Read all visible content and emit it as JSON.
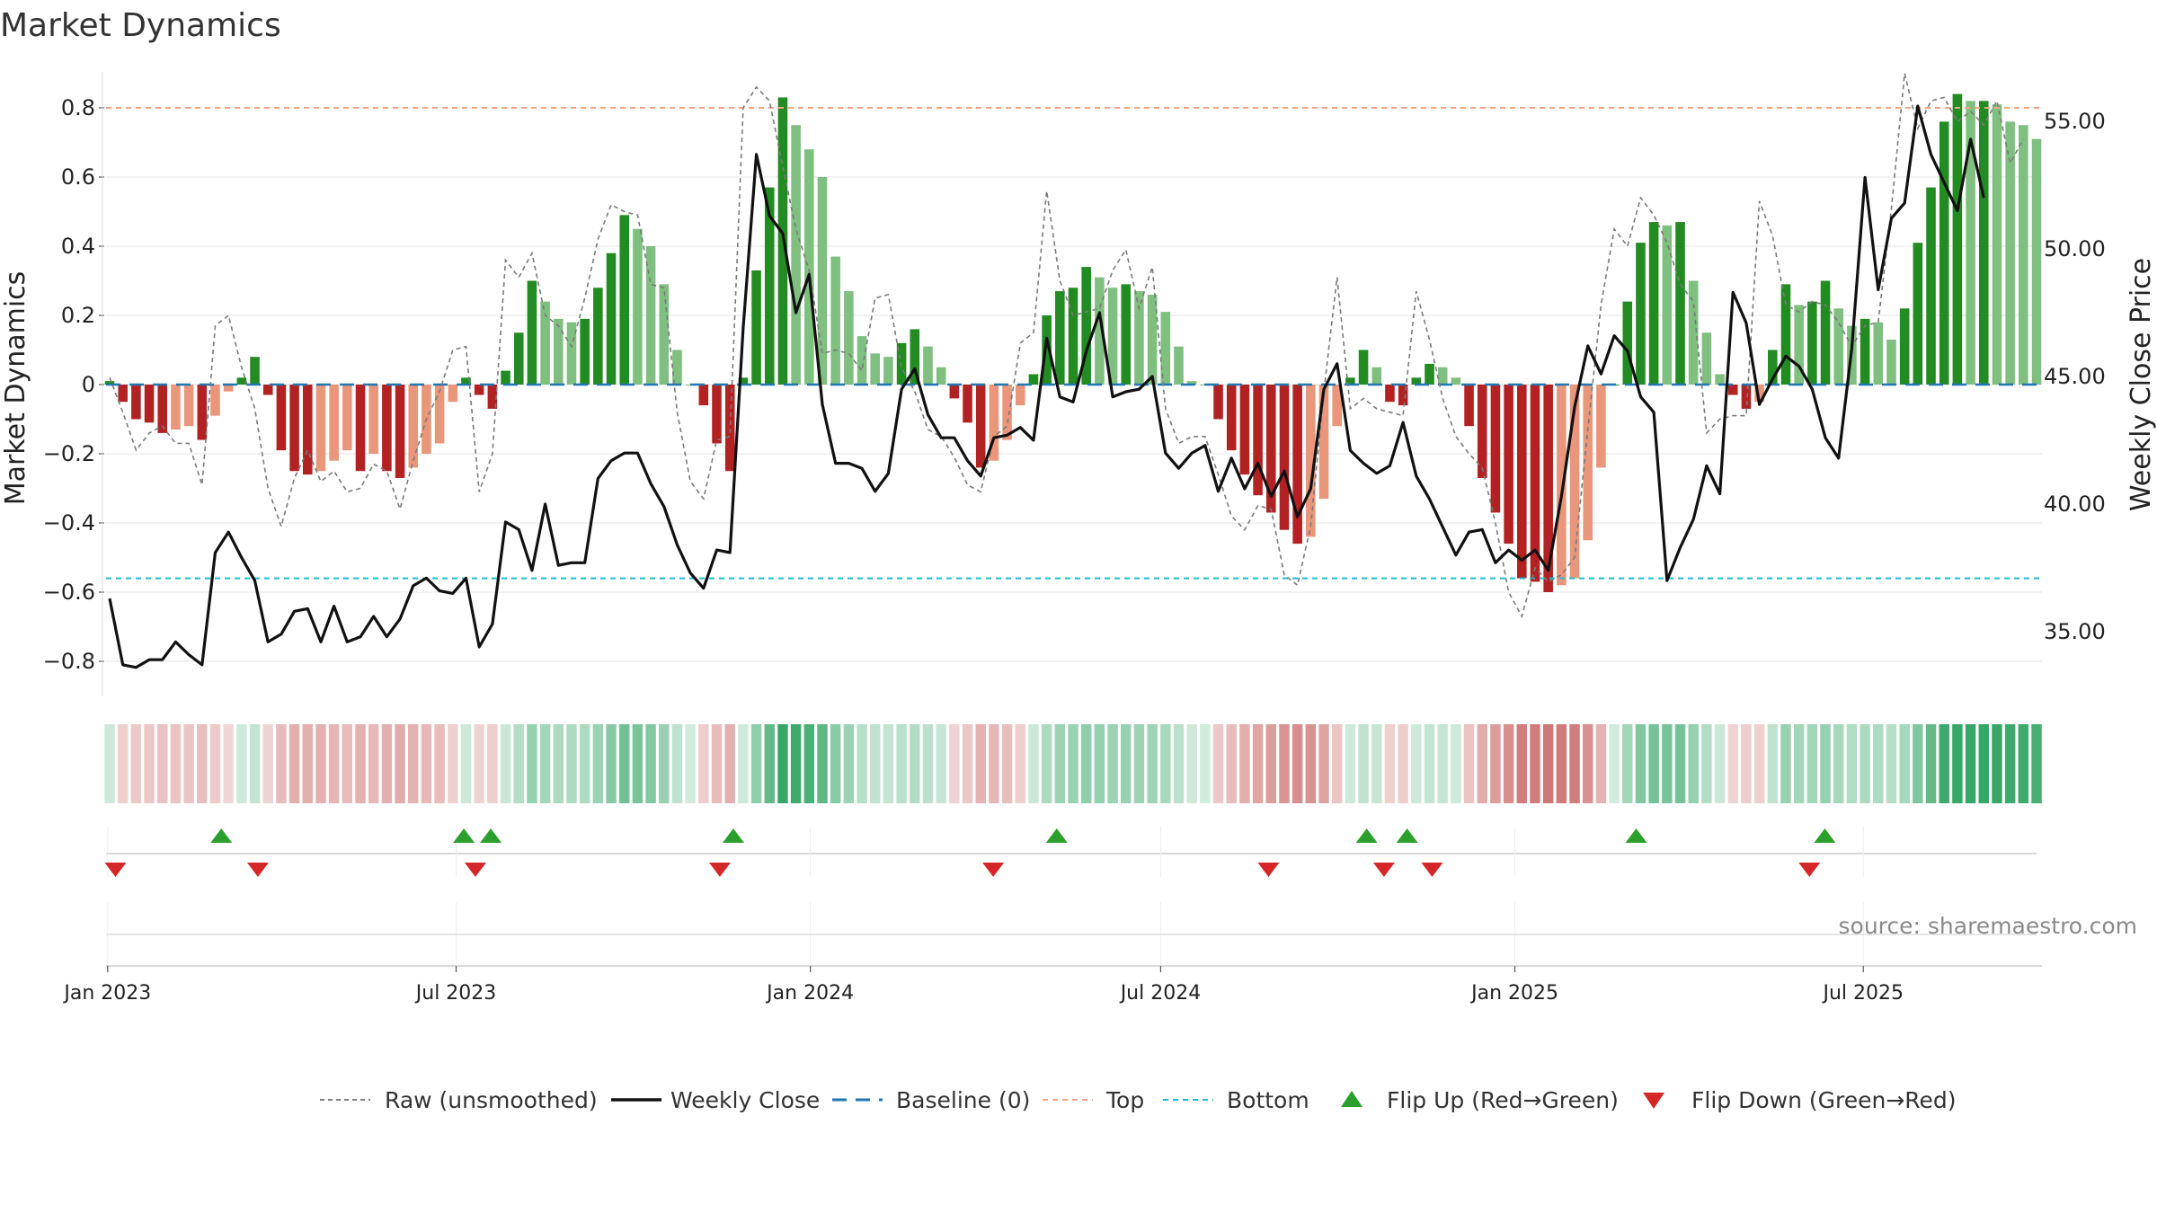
{
  "chart_data": {
    "type": "bar",
    "title": "Market Dynamics",
    "ylabel_left": "Market Dynamics",
    "ylabel_right": "Weekly Close Price",
    "source": "source: sharemaestro.com",
    "ylim_left": [
      -0.9,
      0.9
    ],
    "ylim_right": [
      32.5,
      57.5
    ],
    "yticks_left": [
      {
        "value": 0.8,
        "label": "0.8"
      },
      {
        "value": 0.6,
        "label": "0.6"
      },
      {
        "value": 0.4,
        "label": "0.4"
      },
      {
        "value": 0.2,
        "label": "0.2"
      },
      {
        "value": 0.0,
        "label": "0"
      },
      {
        "value": -0.2,
        "label": "−0.2"
      },
      {
        "value": -0.4,
        "label": "−0.4"
      },
      {
        "value": -0.6,
        "label": "−0.6"
      },
      {
        "value": -0.8,
        "label": "−0.8"
      }
    ],
    "yticks_right": [
      {
        "value": 55,
        "label": "55.00"
      },
      {
        "value": 50,
        "label": "50.00"
      },
      {
        "value": 45,
        "label": "45.00"
      },
      {
        "value": 40,
        "label": "40.00"
      },
      {
        "value": 35,
        "label": "35.00"
      }
    ],
    "x_start": "2023-01-02",
    "x_end": "2025-09-29",
    "x_ticks": [
      {
        "date": "2023-01-01",
        "label": "Jan 2023"
      },
      {
        "date": "2023-07-01",
        "label": "Jul 2023"
      },
      {
        "date": "2024-01-01",
        "label": "Jan 2024"
      },
      {
        "date": "2024-07-01",
        "label": "Jul 2024"
      },
      {
        "date": "2025-01-01",
        "label": "Jan 2025"
      },
      {
        "date": "2025-07-01",
        "label": "Jul 2025"
      }
    ],
    "top_level": 0.8,
    "bottom_level": -0.56,
    "baseline": 0,
    "dynamics": [
      0.01,
      -0.05,
      -0.1,
      -0.11,
      -0.14,
      -0.13,
      -0.12,
      -0.16,
      -0.09,
      -0.02,
      0.02,
      0.08,
      -0.03,
      -0.19,
      -0.25,
      -0.26,
      -0.25,
      -0.22,
      -0.19,
      -0.25,
      -0.2,
      -0.25,
      -0.27,
      -0.24,
      -0.2,
      -0.17,
      -0.05,
      0.02,
      -0.03,
      -0.07,
      0.04,
      0.15,
      0.3,
      0.24,
      0.19,
      0.18,
      0.19,
      0.28,
      0.38,
      0.49,
      0.45,
      0.4,
      0.29,
      0.1,
      0.0,
      -0.06,
      -0.17,
      -0.25,
      0.02,
      0.33,
      0.57,
      0.83,
      0.75,
      0.68,
      0.6,
      0.37,
      0.27,
      0.14,
      0.09,
      0.08,
      0.12,
      0.16,
      0.11,
      0.05,
      -0.04,
      -0.11,
      -0.24,
      -0.22,
      -0.16,
      -0.06,
      0.03,
      0.2,
      0.27,
      0.28,
      0.34,
      0.31,
      0.28,
      0.29,
      0.27,
      0.26,
      0.21,
      0.11,
      0.01,
      0.0,
      -0.1,
      -0.19,
      -0.26,
      -0.32,
      -0.37,
      -0.42,
      -0.46,
      -0.44,
      -0.33,
      -0.12,
      0.02,
      0.1,
      0.05,
      -0.05,
      -0.06,
      0.02,
      0.06,
      0.05,
      0.02,
      -0.12,
      -0.27,
      -0.37,
      -0.46,
      -0.56,
      -0.57,
      -0.6,
      -0.58,
      -0.56,
      -0.45,
      -0.24,
      0.0,
      0.24,
      0.41,
      0.47,
      0.46,
      0.47,
      0.3,
      0.15,
      0.03,
      -0.03,
      -0.07,
      -0.05,
      0.1,
      0.29,
      0.23,
      0.24,
      0.3,
      0.22,
      0.17,
      0.19,
      0.18,
      0.13,
      0.22,
      0.41,
      0.57,
      0.76,
      0.84,
      0.82,
      0.82,
      0.81,
      0.76,
      0.75,
      0.71
    ],
    "raw": [
      0.02,
      -0.08,
      -0.19,
      -0.14,
      -0.12,
      -0.17,
      -0.17,
      -0.29,
      0.17,
      0.2,
      0.05,
      -0.07,
      -0.3,
      -0.41,
      -0.27,
      -0.19,
      -0.28,
      -0.25,
      -0.31,
      -0.3,
      -0.23,
      -0.25,
      -0.36,
      -0.22,
      -0.1,
      -0.02,
      0.1,
      0.11,
      -0.31,
      -0.2,
      0.36,
      0.31,
      0.38,
      0.2,
      0.17,
      0.11,
      0.25,
      0.42,
      0.52,
      0.5,
      0.49,
      0.29,
      0.28,
      -0.08,
      -0.28,
      -0.33,
      -0.16,
      -0.15,
      0.8,
      0.86,
      0.82,
      0.63,
      0.45,
      0.33,
      0.09,
      0.1,
      0.09,
      0.04,
      0.25,
      0.26,
      0.05,
      -0.02,
      -0.13,
      -0.15,
      -0.21,
      -0.29,
      -0.31,
      -0.15,
      -0.12,
      0.12,
      0.15,
      0.56,
      0.3,
      0.2,
      0.21,
      0.22,
      0.33,
      0.39,
      0.22,
      0.34,
      -0.07,
      -0.17,
      -0.15,
      -0.15,
      -0.26,
      -0.38,
      -0.42,
      -0.35,
      -0.36,
      -0.55,
      -0.58,
      -0.41,
      -0.02,
      0.31,
      -0.07,
      -0.04,
      -0.07,
      -0.08,
      -0.09,
      0.27,
      0.13,
      -0.04,
      -0.15,
      -0.2,
      -0.24,
      -0.4,
      -0.6,
      -0.67,
      -0.53,
      -0.57,
      -0.55,
      -0.5,
      -0.13,
      0.23,
      0.45,
      0.4,
      0.54,
      0.49,
      0.41,
      0.29,
      0.24,
      -0.14,
      -0.1,
      -0.09,
      -0.09,
      0.53,
      0.43,
      0.23,
      0.21,
      0.24,
      0.23,
      0.18,
      0.11,
      0.17,
      0.18,
      0.51,
      0.9,
      0.74,
      0.82,
      0.83,
      0.76,
      0.79,
      0.75,
      0.82,
      0.64,
      0.71
    ],
    "close": [
      36.3,
      33.7,
      33.6,
      33.9,
      33.9,
      34.6,
      34.1,
      33.7,
      38.1,
      38.9,
      37.9,
      37.0,
      34.6,
      34.9,
      35.8,
      35.9,
      34.6,
      36.0,
      34.6,
      34.8,
      35.6,
      34.8,
      35.5,
      36.8,
      37.1,
      36.6,
      36.5,
      37.1,
      34.4,
      35.3,
      39.3,
      39.0,
      37.4,
      40.0,
      37.6,
      37.7,
      37.7,
      41.0,
      41.7,
      42.0,
      42.0,
      40.8,
      39.9,
      38.4,
      37.3,
      36.7,
      38.2,
      38.1,
      46.9,
      53.7,
      51.3,
      50.6,
      47.5,
      49.0,
      43.9,
      41.6,
      41.6,
      41.4,
      40.5,
      41.2,
      44.5,
      45.3,
      43.5,
      42.6,
      42.6,
      41.7,
      41.1,
      42.6,
      42.7,
      43.0,
      42.5,
      46.5,
      44.2,
      44.0,
      46.0,
      47.5,
      44.2,
      44.4,
      44.5,
      45.0,
      42.0,
      41.4,
      42.0,
      42.3,
      40.5,
      41.8,
      40.6,
      41.6,
      40.3,
      41.3,
      39.5,
      40.6,
      44.5,
      45.5,
      42.1,
      41.6,
      41.2,
      41.5,
      43.2,
      41.1,
      40.2,
      39.1,
      38.0,
      38.9,
      39.0,
      37.7,
      38.2,
      37.8,
      38.2,
      37.4,
      40.3,
      43.8,
      46.2,
      45.1,
      46.6,
      46.0,
      44.2,
      43.6,
      37.0,
      38.3,
      39.4,
      41.5,
      40.4,
      48.3,
      47.1,
      43.9,
      44.9,
      45.8,
      45.4,
      44.5,
      42.6,
      41.8,
      46.1,
      52.8,
      48.4,
      51.2,
      51.8,
      55.6,
      53.7,
      52.6,
      51.5,
      54.3,
      52.0
    ],
    "flip_up_dates": [
      "2023-03-01",
      "2023-07-05",
      "2023-07-19",
      "2023-11-22",
      "2024-05-08",
      "2024-10-16",
      "2024-11-06",
      "2025-03-05",
      "2025-06-11"
    ],
    "flip_down_dates": [
      "2023-01-05",
      "2023-03-20",
      "2023-07-11",
      "2023-11-15",
      "2024-04-05",
      "2024-08-26",
      "2024-10-25",
      "2024-11-19",
      "2025-06-03"
    ],
    "legend": [
      {
        "key": "raw",
        "label": "Raw (unsmoothed)",
        "color": "#808080"
      },
      {
        "key": "close",
        "label": "Weekly Close",
        "color": "#111111"
      },
      {
        "key": "baseline",
        "label": "Baseline (0)",
        "color": "#1f77b4"
      },
      {
        "key": "top",
        "label": "Top",
        "color": "#f4a582"
      },
      {
        "key": "bottom",
        "label": "Bottom",
        "color": "#17becf"
      },
      {
        "key": "flip_up",
        "label": "Flip Up (Red→Green)",
        "color": "#2ca02c"
      },
      {
        "key": "flip_down",
        "label": "Flip Down (Green→Red)",
        "color": "#d62728"
      }
    ],
    "colors": {
      "strong_green": "#228b22",
      "light_green": "#7fbf7f",
      "strong_red": "#b22222",
      "light_red": "#e9967a",
      "up_marker": "#2ca02c",
      "down_marker": "#d62728",
      "strip_green": "#2ca25f",
      "strip_red": "#c0504d"
    }
  }
}
